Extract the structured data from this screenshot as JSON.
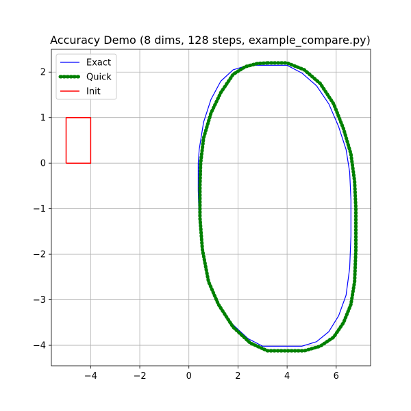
{
  "chart_data": {
    "type": "line",
    "title": "Accuracy Demo (8 dims, 128 steps, example_compare.py)",
    "xlabel": "",
    "ylabel": "",
    "xlim": [
      -5.6,
      7.4
    ],
    "ylim": [
      -4.45,
      2.5
    ],
    "xticks": [
      -4,
      -2,
      0,
      2,
      4,
      6
    ],
    "yticks": [
      -4,
      -3,
      -2,
      -1,
      0,
      1,
      2
    ],
    "xtick_labels": [
      "−4",
      "−2",
      "0",
      "2",
      "4",
      "6"
    ],
    "ytick_labels": [
      "−4",
      "−3",
      "−2",
      "−1",
      "0",
      "1",
      "2"
    ],
    "grid": true,
    "legend_position": "upper-left",
    "series": [
      {
        "name": "Exact",
        "color": "#0000ff",
        "style": "solid",
        "x": [
          3.0,
          4.0,
          4.6,
          5.2,
          5.7,
          6.1,
          6.4,
          6.55,
          6.6,
          6.6,
          6.55,
          6.4,
          6.1,
          5.7,
          5.2,
          4.6,
          4.0,
          3.0,
          2.4,
          1.8,
          1.2,
          0.8,
          0.55,
          0.42,
          0.38,
          0.38,
          0.42,
          0.6,
          0.9,
          1.3,
          1.8,
          2.3,
          2.7,
          3.0
        ],
        "y": [
          2.15,
          2.15,
          1.98,
          1.7,
          1.3,
          0.8,
          0.3,
          -0.2,
          -0.8,
          -1.6,
          -2.3,
          -2.9,
          -3.35,
          -3.7,
          -3.92,
          -4.02,
          -4.02,
          -4.02,
          -3.85,
          -3.55,
          -3.1,
          -2.6,
          -2.0,
          -1.3,
          -0.6,
          0.0,
          0.3,
          0.9,
          1.4,
          1.8,
          2.05,
          2.13,
          2.15,
          2.15
        ]
      },
      {
        "name": "Quick",
        "color": "#008000",
        "style": "dotted",
        "x": [
          3.2,
          4.0,
          4.7,
          5.35,
          5.9,
          6.3,
          6.6,
          6.75,
          6.8,
          6.8,
          6.75,
          6.6,
          6.3,
          5.9,
          5.35,
          4.7,
          4.0,
          3.2,
          2.5,
          1.8,
          1.2,
          0.8,
          0.55,
          0.45,
          0.45,
          0.48,
          0.6,
          0.9,
          1.3,
          1.8,
          2.3,
          2.8,
          3.2
        ],
        "y": [
          2.2,
          2.2,
          2.05,
          1.75,
          1.3,
          0.75,
          0.2,
          -0.4,
          -1.0,
          -1.9,
          -2.6,
          -3.1,
          -3.5,
          -3.82,
          -4.02,
          -4.12,
          -4.12,
          -4.12,
          -3.95,
          -3.6,
          -3.1,
          -2.6,
          -1.9,
          -1.2,
          -0.5,
          0.0,
          0.55,
          1.1,
          1.55,
          1.95,
          2.12,
          2.19,
          2.2
        ]
      },
      {
        "name": "Init",
        "color": "#ff0000",
        "style": "solid",
        "x": [
          -5,
          -4,
          -4,
          -5,
          -5
        ],
        "y": [
          0,
          0,
          1,
          1,
          0
        ]
      }
    ]
  }
}
